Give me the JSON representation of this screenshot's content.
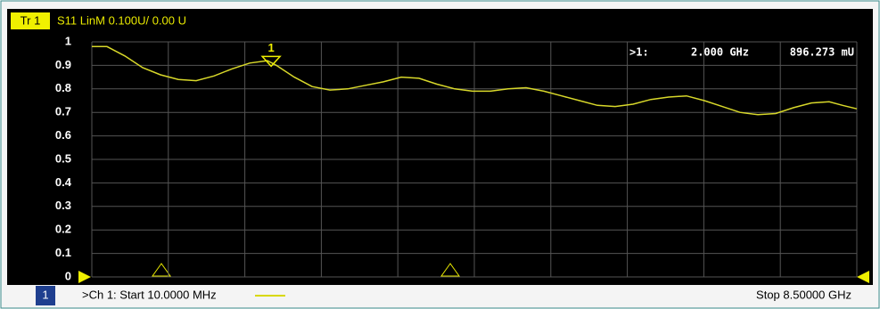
{
  "chart_data": {
    "type": "line",
    "trace_label": "Tr 1",
    "title": "S11 LinM 0.100U/ 0.00 U",
    "x": [
      0.01,
      0.178,
      0.376,
      0.574,
      0.772,
      0.97,
      1.168,
      1.366,
      1.564,
      1.762,
      1.959,
      2.058,
      2.256,
      2.454,
      2.652,
      2.85,
      3.048,
      3.246,
      3.444,
      3.641,
      3.839,
      4.037,
      4.235,
      4.433,
      4.631,
      4.829,
      5.027,
      5.225,
      5.423,
      5.621,
      5.818,
      6.016,
      6.214,
      6.412,
      6.61,
      6.808,
      7.006,
      7.204,
      7.402,
      7.6,
      7.798,
      7.996,
      8.193,
      8.342,
      8.5
    ],
    "values": [
      0.98,
      0.98,
      0.94,
      0.89,
      0.86,
      0.84,
      0.835,
      0.855,
      0.885,
      0.91,
      0.92,
      0.9,
      0.85,
      0.81,
      0.795,
      0.8,
      0.815,
      0.83,
      0.85,
      0.845,
      0.82,
      0.8,
      0.79,
      0.79,
      0.8,
      0.805,
      0.79,
      0.77,
      0.75,
      0.73,
      0.725,
      0.735,
      0.755,
      0.765,
      0.77,
      0.75,
      0.725,
      0.7,
      0.69,
      0.695,
      0.72,
      0.74,
      0.745,
      0.73,
      0.715
    ],
    "color": "#d8d82a",
    "xlim": [
      0.01,
      8.5
    ],
    "ylim": [
      0,
      1
    ],
    "yticks": [
      0,
      0.1,
      0.2,
      0.3,
      0.4,
      0.5,
      0.6,
      0.7,
      0.8,
      0.9,
      1
    ],
    "grid": true,
    "marker": {
      "label": "1",
      "x": 2.0,
      "value": 0.896273,
      "readout_label": ">1:",
      "x_label": "2.000 GHz",
      "value_label": "896.273 mU"
    },
    "channel": "1",
    "start_label": ">Ch 1: Start 10.0000 MHz",
    "stop_label": "Stop 8.50000 GHz"
  }
}
